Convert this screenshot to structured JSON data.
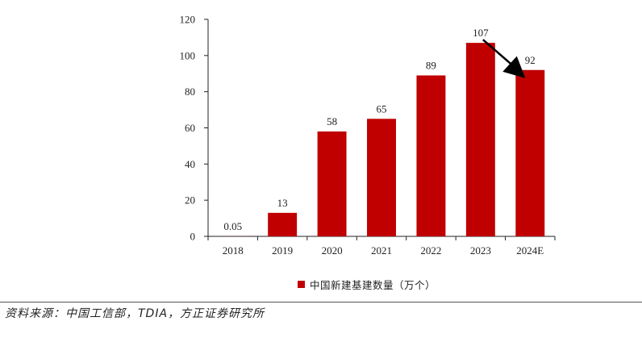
{
  "chart_data": {
    "type": "bar",
    "categories": [
      "2018",
      "2019",
      "2020",
      "2021",
      "2022",
      "2023",
      "2024E"
    ],
    "values": [
      0.05,
      13,
      58,
      65,
      89,
      107,
      92
    ],
    "value_labels": [
      "0.05",
      "13",
      "58",
      "65",
      "89",
      "107",
      "92"
    ],
    "ylim": [
      0,
      120
    ],
    "yticks": [
      0,
      20,
      40,
      60,
      80,
      100,
      120
    ],
    "series_name": "中国新建基建数量（万个）",
    "bar_color": "#c00000",
    "annotations": [
      {
        "type": "arrow",
        "from_category": "2023",
        "to_category": "2024E",
        "meaning": "decline"
      }
    ]
  },
  "legend": {
    "label": "中国新建基建数量（万个）"
  },
  "footer": {
    "source": "资料来源：中国工信部，TDIA，方正证券研究所"
  }
}
